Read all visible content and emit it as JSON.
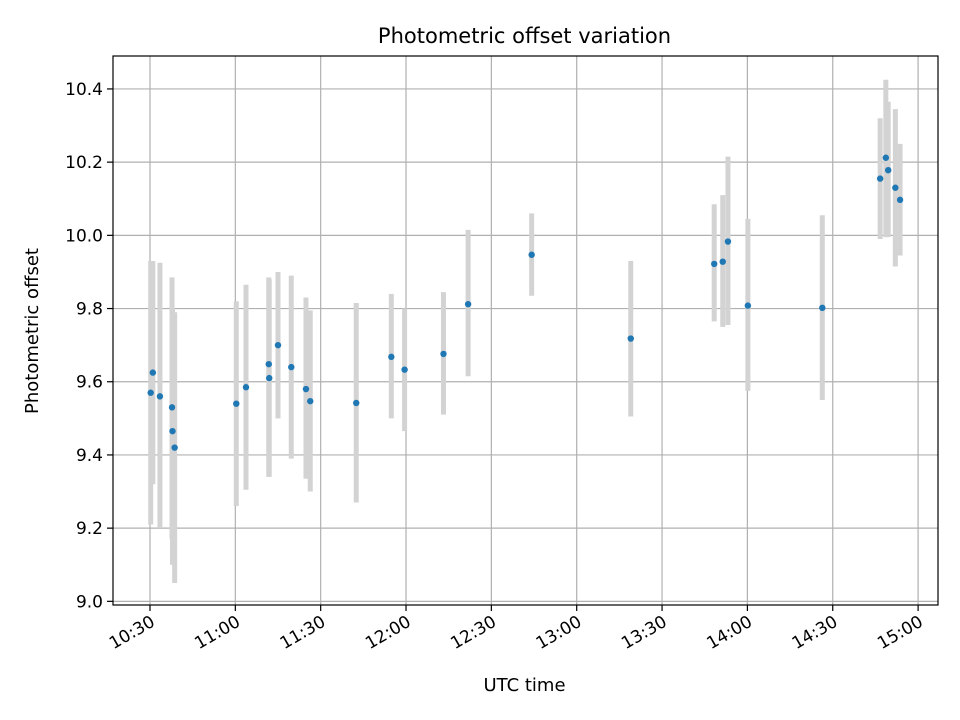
{
  "chart_data": {
    "type": "scatter",
    "title": "Photometric offset variation",
    "xlabel": "UTC time",
    "ylabel": "Photometric offset",
    "grid": true,
    "xlim": [
      "10:17",
      "15:07"
    ],
    "ylim": [
      8.99,
      10.49
    ],
    "x_ticks": [
      "10:30",
      "11:00",
      "11:30",
      "12:00",
      "12:30",
      "13:00",
      "13:30",
      "14:00",
      "14:30",
      "15:00"
    ],
    "y_ticks": [
      "9.0",
      "9.2",
      "9.4",
      "9.6",
      "9.8",
      "10.0",
      "10.2",
      "10.4"
    ],
    "colors": {
      "marker": "#1f77b4",
      "errorbar": "#d3d3d3",
      "grid": "#b0b0b0"
    },
    "points": [
      {
        "t": "10:30:15",
        "y": 9.57,
        "lo": 9.21,
        "hi": 9.93
      },
      {
        "t": "10:31:00",
        "y": 9.625,
        "lo": 9.32,
        "hi": 9.93
      },
      {
        "t": "10:33:30",
        "y": 9.56,
        "lo": 9.2,
        "hi": 9.925
      },
      {
        "t": "10:37:45",
        "y": 9.53,
        "lo": 9.17,
        "hi": 9.885
      },
      {
        "t": "10:37:55",
        "y": 9.465,
        "lo": 9.1,
        "hi": 9.8
      },
      {
        "t": "10:38:40",
        "y": 9.42,
        "lo": 9.05,
        "hi": 9.79
      },
      {
        "t": "11:00:20",
        "y": 9.54,
        "lo": 9.26,
        "hi": 9.82
      },
      {
        "t": "11:03:45",
        "y": 9.585,
        "lo": 9.305,
        "hi": 9.865
      },
      {
        "t": "11:11:45",
        "y": 9.648,
        "lo": 9.34,
        "hi": 9.885
      },
      {
        "t": "11:11:55",
        "y": 9.61,
        "lo": 9.34,
        "hi": 9.88
      },
      {
        "t": "11:15:00",
        "y": 9.7,
        "lo": 9.5,
        "hi": 9.9
      },
      {
        "t": "11:19:40",
        "y": 9.64,
        "lo": 9.39,
        "hi": 9.89
      },
      {
        "t": "11:24:50",
        "y": 9.58,
        "lo": 9.335,
        "hi": 9.83
      },
      {
        "t": "11:26:20",
        "y": 9.547,
        "lo": 9.3,
        "hi": 9.795
      },
      {
        "t": "11:42:30",
        "y": 9.542,
        "lo": 9.27,
        "hi": 9.815
      },
      {
        "t": "11:54:50",
        "y": 9.668,
        "lo": 9.5,
        "hi": 9.84
      },
      {
        "t": "11:59:30",
        "y": 9.633,
        "lo": 9.465,
        "hi": 9.8
      },
      {
        "t": "12:13:10",
        "y": 9.676,
        "lo": 9.51,
        "hi": 9.845
      },
      {
        "t": "12:21:50",
        "y": 9.812,
        "lo": 9.615,
        "hi": 10.015
      },
      {
        "t": "12:44:10",
        "y": 9.947,
        "lo": 9.835,
        "hi": 10.06
      },
      {
        "t": "13:19:00",
        "y": 9.718,
        "lo": 9.505,
        "hi": 9.93
      },
      {
        "t": "13:48:20",
        "y": 9.922,
        "lo": 9.765,
        "hi": 10.085
      },
      {
        "t": "13:51:20",
        "y": 9.928,
        "lo": 9.75,
        "hi": 10.11
      },
      {
        "t": "13:53:10",
        "y": 9.983,
        "lo": 9.755,
        "hi": 10.215
      },
      {
        "t": "14:00:10",
        "y": 9.808,
        "lo": 9.575,
        "hi": 10.045
      },
      {
        "t": "14:26:20",
        "y": 9.802,
        "lo": 9.55,
        "hi": 10.055
      },
      {
        "t": "14:46:40",
        "y": 10.155,
        "lo": 9.99,
        "hi": 10.32
      },
      {
        "t": "14:48:40",
        "y": 10.212,
        "lo": 9.995,
        "hi": 10.425
      },
      {
        "t": "14:49:30",
        "y": 10.178,
        "lo": 9.995,
        "hi": 10.365
      },
      {
        "t": "14:52:00",
        "y": 10.13,
        "lo": 9.915,
        "hi": 10.345
      },
      {
        "t": "14:53:40",
        "y": 10.097,
        "lo": 9.945,
        "hi": 10.25
      }
    ]
  }
}
